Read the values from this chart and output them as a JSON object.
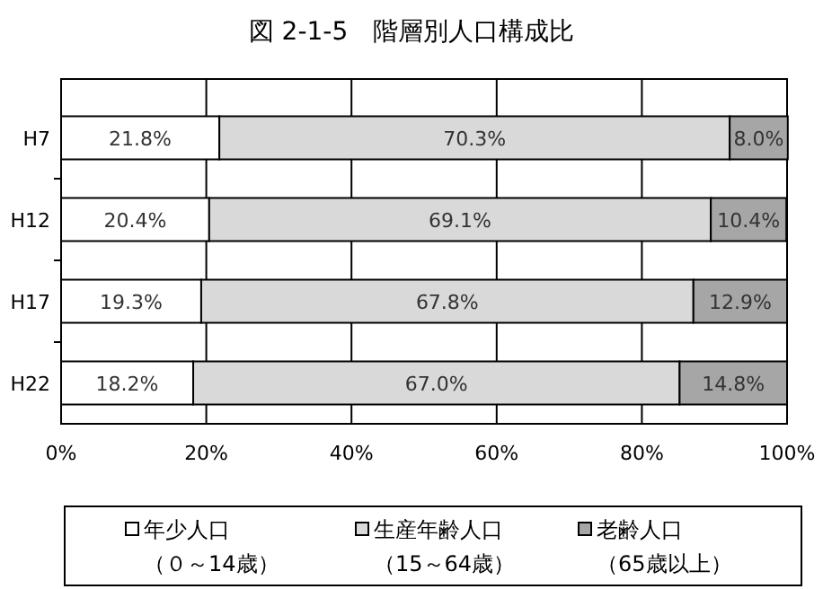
{
  "chart_data": {
    "type": "bar",
    "orientation": "horizontal",
    "stacked": true,
    "title": "図 2-1-5　階層別人口構成比",
    "categories": [
      "H7",
      "H12",
      "H17",
      "H22"
    ],
    "series": [
      {
        "name": "年少人口（０～14歳）",
        "color": "#ffffff",
        "values": [
          21.8,
          20.4,
          19.3,
          18.2
        ]
      },
      {
        "name": "生産年齢人口（15～64歳）",
        "color": "#d9d9d9",
        "values": [
          70.3,
          69.1,
          67.8,
          67.0
        ]
      },
      {
        "name": "老齢人口（65歳以上）",
        "color": "#a6a6a6",
        "values": [
          8.0,
          10.4,
          12.9,
          14.8
        ]
      }
    ],
    "xlim": [
      0,
      100
    ],
    "xticks": [
      {
        "value": 0,
        "label": "0%"
      },
      {
        "value": 20,
        "label": "20%"
      },
      {
        "value": 40,
        "label": "40%"
      },
      {
        "value": 60,
        "label": "60%"
      },
      {
        "value": 80,
        "label": "80%"
      },
      {
        "value": 100,
        "label": "100%"
      }
    ],
    "value_labels": [
      [
        "21.8%",
        "20.4%",
        "19.3%",
        "18.2%"
      ],
      [
        "70.3%",
        "69.1%",
        "67.8%",
        "67.0%"
      ],
      [
        "8.0%",
        "10.4%",
        "12.9%",
        "14.8%"
      ]
    ],
    "grid": "x",
    "legend": "bottom"
  }
}
